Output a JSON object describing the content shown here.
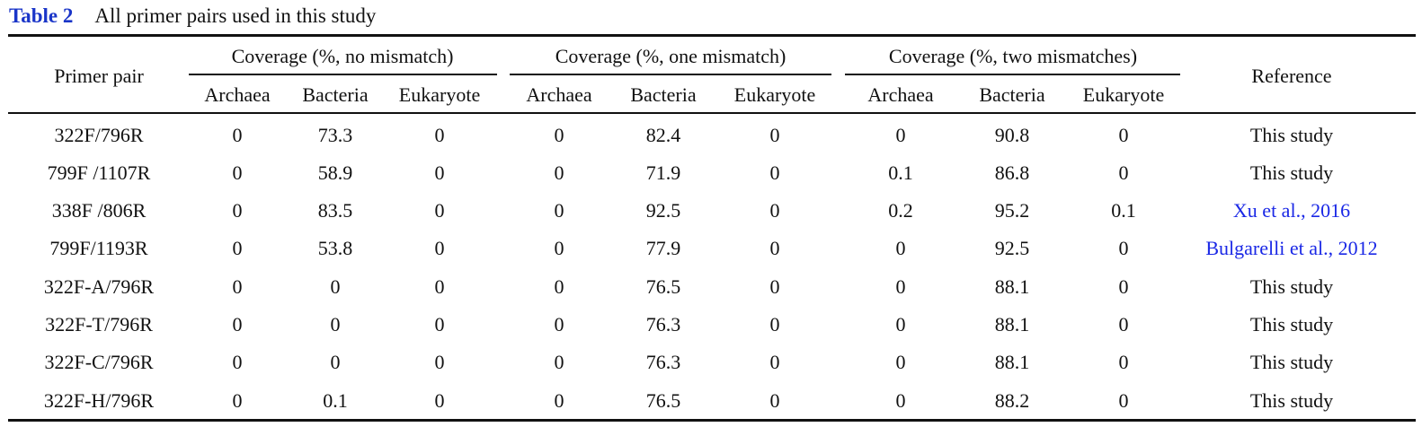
{
  "caption": {
    "label": "Table 2",
    "title": "All primer pairs used in this study"
  },
  "table": {
    "primer_header": "Primer pair",
    "reference_header": "Reference",
    "groups": [
      "Coverage (%, no mismatch)",
      "Coverage (%, one mismatch)",
      "Coverage (%, two mismatches)"
    ],
    "subcolumns": [
      "Archaea",
      "Bacteria",
      "Eukaryote"
    ],
    "rows": [
      {
        "primer": "322F/796R",
        "values": [
          "0",
          "73.3",
          "0",
          "0",
          "82.4",
          "0",
          "0",
          "90.8",
          "0"
        ],
        "reference": "This study",
        "reference_link": false
      },
      {
        "primer": "799F /1107R",
        "values": [
          "0",
          "58.9",
          "0",
          "0",
          "71.9",
          "0",
          "0.1",
          "86.8",
          "0"
        ],
        "reference": "This study",
        "reference_link": false
      },
      {
        "primer": "338F /806R",
        "values": [
          "0",
          "83.5",
          "0",
          "0",
          "92.5",
          "0",
          "0.2",
          "95.2",
          "0.1"
        ],
        "reference": "Xu et al., 2016",
        "reference_link": true
      },
      {
        "primer": "799F/1193R",
        "values": [
          "0",
          "53.8",
          "0",
          "0",
          "77.9",
          "0",
          "0",
          "92.5",
          "0"
        ],
        "reference": "Bulgarelli et al., 2012",
        "reference_link": true
      },
      {
        "primer": "322F-A/796R",
        "values": [
          "0",
          "0",
          "0",
          "0",
          "76.5",
          "0",
          "0",
          "88.1",
          "0"
        ],
        "reference": "This study",
        "reference_link": false
      },
      {
        "primer": "322F-T/796R",
        "values": [
          "0",
          "0",
          "0",
          "0",
          "76.3",
          "0",
          "0",
          "88.1",
          "0"
        ],
        "reference": "This study",
        "reference_link": false
      },
      {
        "primer": "322F-C/796R",
        "values": [
          "0",
          "0",
          "0",
          "0",
          "76.3",
          "0",
          "0",
          "88.1",
          "0"
        ],
        "reference": "This study",
        "reference_link": false
      },
      {
        "primer": "322F-H/796R",
        "values": [
          "0",
          "0.1",
          "0",
          "0",
          "76.5",
          "0",
          "0",
          "88.2",
          "0"
        ],
        "reference": "This study",
        "reference_link": false
      }
    ]
  },
  "colors": {
    "caption_label": "#1a35c8",
    "link": "#1a28e6",
    "text": "#111111"
  }
}
